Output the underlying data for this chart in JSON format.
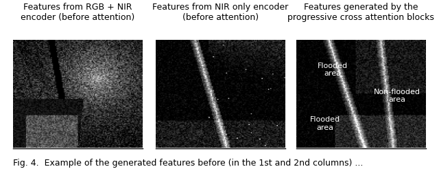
{
  "title1_line1": "Features from RGB + NIR",
  "title1_line2": "encoder (before attention)",
  "title2_line1": "Features from NIR only encoder",
  "title2_line2": "(before attention)",
  "title3_line1": "Features generated by the",
  "title3_line2": "progressive cross attention blocks",
  "label_flooded_top": "Flooded\narea",
  "label_non_flooded": "Non-flooded\narea",
  "label_flooded_bottom": "Flooded\narea",
  "caption": "Fig. 4.  Example of the generated features before (in the 1st and 2nd columns) ...",
  "background_color": "#ffffff",
  "text_color": "#000000",
  "image_bg": "#1a1a1a",
  "title_fontsize": 9,
  "label_fontsize": 8,
  "caption_fontsize": 9
}
